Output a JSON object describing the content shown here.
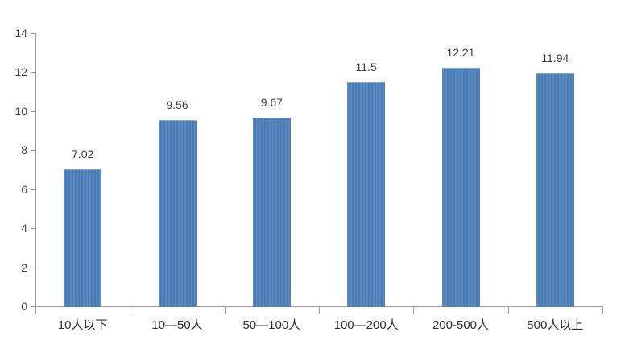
{
  "chart_data": {
    "type": "bar",
    "title": "",
    "xlabel": "",
    "ylabel": "",
    "categories": [
      "10人以下",
      "10—50人",
      "50—100人",
      "100—200人",
      "200-500人",
      "500人以上"
    ],
    "values": [
      7.02,
      9.56,
      9.67,
      11.5,
      12.21,
      11.94
    ],
    "value_labels": [
      "7.02",
      "9.56",
      "9.67",
      "11.5",
      "12.21",
      "11.94"
    ],
    "ylim": [
      0,
      14
    ],
    "yticks": [
      0,
      2,
      4,
      6,
      8,
      10,
      12,
      14
    ],
    "grid": false,
    "legend_position": "none",
    "bar_color": "#4f81bd",
    "axis_color": "#9b9b9b",
    "text_color": "#3c3c3c",
    "background_color": "#ffffff"
  }
}
